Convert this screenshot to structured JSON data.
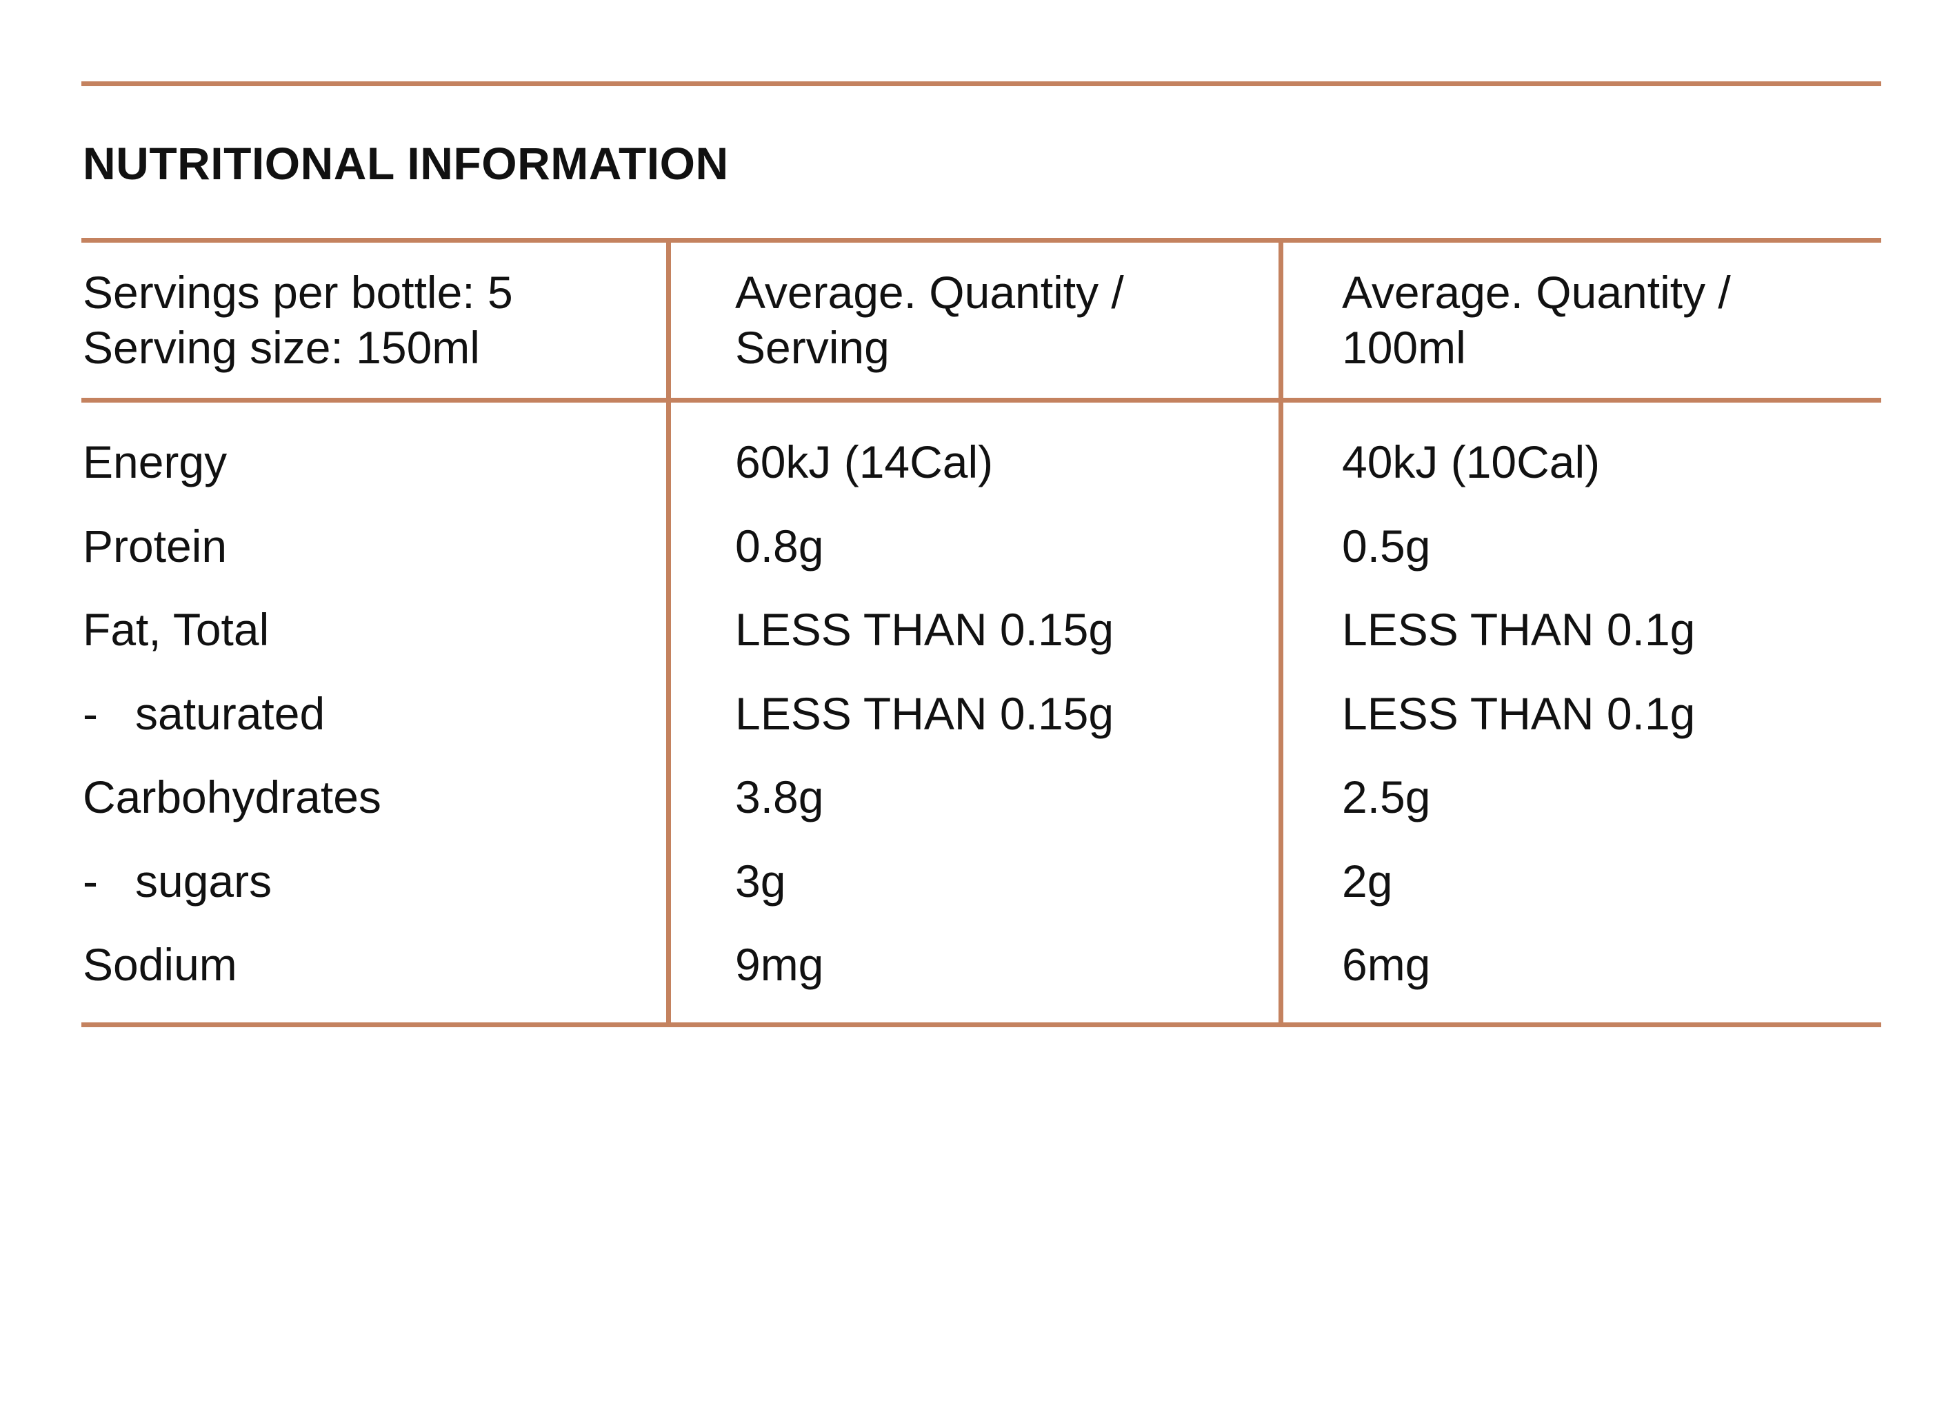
{
  "title": "NUTRITIONAL INFORMATION",
  "accent_color": "#C4825F",
  "header": {
    "servings_per_bottle": "Servings per bottle: 5",
    "serving_size": "Serving size: 150ml",
    "col2_line1": "Average. Quantity /",
    "col2_line2": "Serving",
    "col3_line1": "Average. Quantity /",
    "col3_line2": "100ml"
  },
  "rows": [
    {
      "prefix": "",
      "label": "Energy",
      "per_serving": "60kJ (14Cal)",
      "per_100ml": "40kJ (10Cal)"
    },
    {
      "prefix": "",
      "label": "Protein",
      "per_serving": "0.8g",
      "per_100ml": "0.5g"
    },
    {
      "prefix": "",
      "label": "Fat, Total",
      "per_serving": "LESS THAN 0.15g",
      "per_100ml": "LESS THAN 0.1g"
    },
    {
      "prefix": "-",
      "label": "saturated",
      "per_serving": "LESS THAN 0.15g",
      "per_100ml": "LESS THAN 0.1g"
    },
    {
      "prefix": "",
      "label": "Carbohydrates",
      "per_serving": "3.8g",
      "per_100ml": "2.5g"
    },
    {
      "prefix": "-",
      "label": "sugars",
      "per_serving": "3g",
      "per_100ml": "2g"
    },
    {
      "prefix": "",
      "label": "Sodium",
      "per_serving": "9mg",
      "per_100ml": "6mg"
    }
  ]
}
